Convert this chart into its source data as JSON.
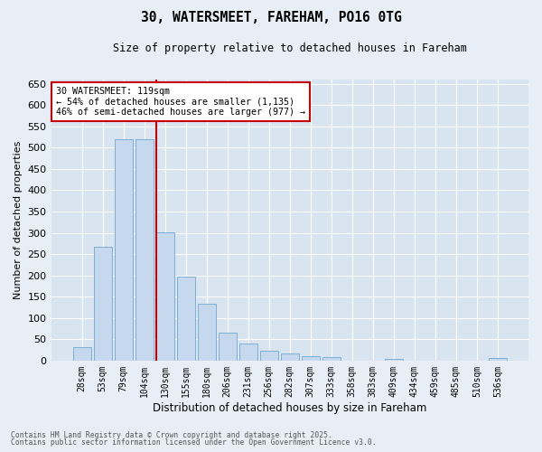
{
  "title_line1": "30, WATERSMEET, FAREHAM, PO16 0TG",
  "title_line2": "Size of property relative to detached houses in Fareham",
  "xlabel": "Distribution of detached houses by size in Fareham",
  "ylabel": "Number of detached properties",
  "bar_labels": [
    "28sqm",
    "53sqm",
    "79sqm",
    "104sqm",
    "130sqm",
    "155sqm",
    "180sqm",
    "206sqm",
    "231sqm",
    "256sqm",
    "282sqm",
    "307sqm",
    "333sqm",
    "358sqm",
    "383sqm",
    "409sqm",
    "434sqm",
    "459sqm",
    "485sqm",
    "510sqm",
    "536sqm"
  ],
  "bar_values": [
    32,
    268,
    519,
    519,
    302,
    198,
    133,
    65,
    40,
    22,
    17,
    10,
    8,
    0,
    0,
    4,
    0,
    0,
    0,
    0,
    5
  ],
  "bar_color": "#c5d8ee",
  "bar_edgecolor": "#7bafd4",
  "bg_color": "#e8eef6",
  "vline_color": "#cc0000",
  "vline_pos": 3.575,
  "annotation_text": "30 WATERSMEET: 119sqm\n← 54% of detached houses are smaller (1,135)\n46% of semi-detached houses are larger (977) →",
  "ylim": [
    0,
    660
  ],
  "yticks": [
    0,
    50,
    100,
    150,
    200,
    250,
    300,
    350,
    400,
    450,
    500,
    550,
    600,
    650
  ],
  "footnote1": "Contains HM Land Registry data © Crown copyright and database right 2025.",
  "footnote2": "Contains public sector information licensed under the Open Government Licence v3.0.",
  "grid_color": "#ffffff",
  "axis_bg_color": "#d8e4f0"
}
